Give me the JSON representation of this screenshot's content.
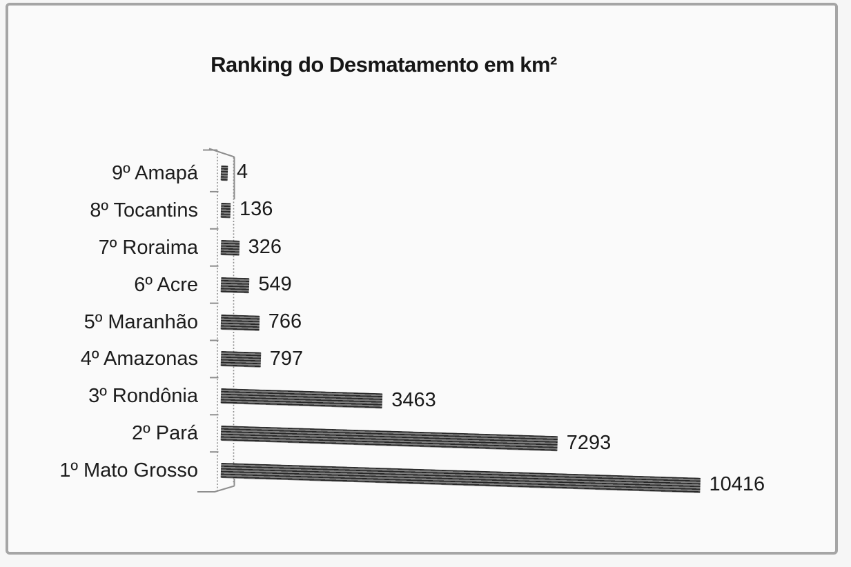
{
  "chart_data": {
    "type": "bar",
    "orientation": "horizontal",
    "style": "3d-perspective-striped",
    "title": "Ranking do Desmatamento em km²",
    "categories": [
      "9º Amapá",
      "8º Tocantins",
      "7º Roraima",
      "6º Acre",
      "5º Maranhão",
      "4º Amazonas",
      "3º Rondônia",
      "2º Pará",
      "1º Mato Grosso"
    ],
    "values": [
      4,
      136,
      326,
      549,
      766,
      797,
      3463,
      7293,
      10416
    ],
    "data_labels": [
      "4",
      "136",
      "326",
      "549",
      "766",
      "797",
      "3463",
      "7293",
      "10416"
    ],
    "xlabel": "",
    "ylabel": "",
    "xlim": [
      0,
      10500
    ],
    "grid": false,
    "legend": false,
    "data_labels_shown": true
  },
  "colors": {
    "page_background": "#f6f6f6",
    "chart_background": "#fafafa",
    "frame_border": "#a5a5a5",
    "title_text": "#161616",
    "label_text": "#1c1c1c",
    "bar_stripe_dark": "#282828",
    "bar_stripe_light": "#7d7d7d",
    "axis_line": "#8e8e8e"
  }
}
